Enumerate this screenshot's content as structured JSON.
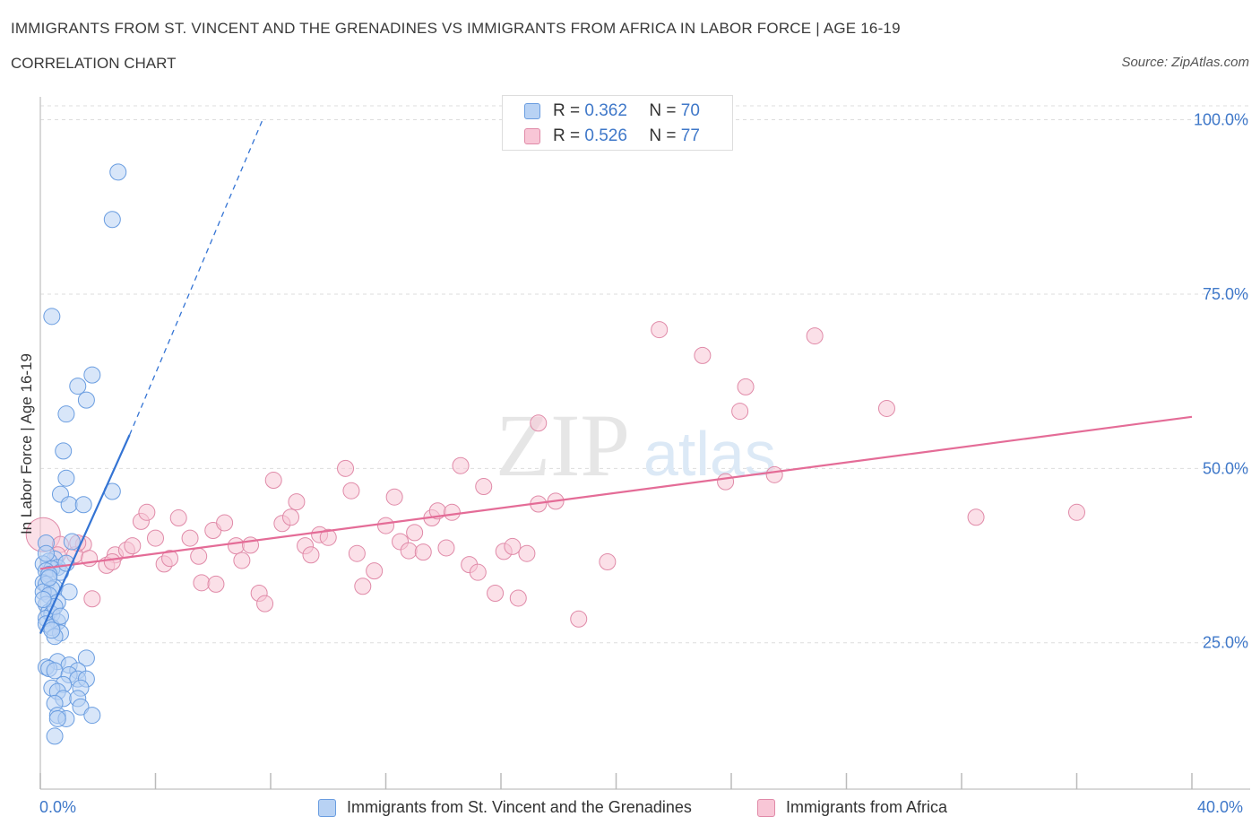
{
  "header": {
    "title": "IMMIGRANTS FROM ST. VINCENT AND THE GRENADINES VS IMMIGRANTS FROM AFRICA IN LABOR FORCE | AGE 16-19",
    "subtitle": "CORRELATION CHART",
    "source": "Source: ZipAtlas.com"
  },
  "legend": {
    "series1": {
      "r_label": "R = ",
      "r_value": "0.362",
      "n_label": "N = ",
      "n_value": "70"
    },
    "series2": {
      "r_label": "R = ",
      "r_value": "0.526",
      "n_label": "N = ",
      "n_value": "77"
    }
  },
  "colors": {
    "blue_fill": "#b8d2f4",
    "blue_stroke": "#6a9de0",
    "blue_line": "#3474d4",
    "pink_fill": "#f8c6d6",
    "pink_stroke": "#e08aa8",
    "pink_line": "#e46c97",
    "tick_text": "#3f78c9",
    "grid": "#dddddd"
  },
  "watermark": {
    "zip": "ZIP",
    "atlas": "atlas"
  },
  "chart_data": {
    "type": "scatter",
    "title": "IMMIGRANTS FROM ST. VINCENT AND THE GRENADINES VS IMMIGRANTS FROM AFRICA IN LABOR FORCE | AGE 16-19",
    "xlabel": "",
    "ylabel": "In Labor Force | Age 16-19",
    "xlim": [
      0,
      40
    ],
    "ylim": [
      4,
      102
    ],
    "x_tick_labels": {
      "min": "0.0%",
      "max": "40.0%"
    },
    "y_ticks": [
      {
        "value": 25,
        "label": "25.0%"
      },
      {
        "value": 50,
        "label": "50.0%"
      },
      {
        "value": 75,
        "label": "75.0%"
      },
      {
        "value": 100,
        "label": "100.0%"
      }
    ],
    "series": [
      {
        "name": "Immigrants from St. Vincent and the Grenadines",
        "color": "blue",
        "points": [
          [
            2.7,
            92.5
          ],
          [
            2.5,
            85.7
          ],
          [
            0.4,
            71.8
          ],
          [
            1.8,
            63.4
          ],
          [
            1.3,
            61.8
          ],
          [
            1.6,
            59.8
          ],
          [
            0.9,
            57.8
          ],
          [
            0.8,
            52.5
          ],
          [
            0.9,
            48.6
          ],
          [
            2.5,
            46.7
          ],
          [
            0.7,
            46.3
          ],
          [
            1.0,
            44.8
          ],
          [
            1.5,
            44.8
          ],
          [
            1.1,
            39.5
          ],
          [
            0.2,
            39.3
          ],
          [
            0.5,
            37.0
          ],
          [
            0.3,
            36.7
          ],
          [
            0.1,
            36.3
          ],
          [
            0.6,
            35.8
          ],
          [
            0.4,
            35.6
          ],
          [
            0.2,
            35.3
          ],
          [
            0.7,
            35.1
          ],
          [
            0.3,
            34.8
          ],
          [
            0.1,
            33.6
          ],
          [
            0.2,
            33.4
          ],
          [
            0.5,
            32.9
          ],
          [
            0.4,
            32.7
          ],
          [
            0.1,
            32.3
          ],
          [
            1.0,
            32.3
          ],
          [
            0.3,
            31.8
          ],
          [
            0.6,
            30.8
          ],
          [
            0.2,
            30.5
          ],
          [
            0.3,
            29.4
          ],
          [
            0.4,
            29.1
          ],
          [
            0.2,
            28.5
          ],
          [
            0.6,
            28.0
          ],
          [
            0.2,
            27.7
          ],
          [
            0.4,
            27.2
          ],
          [
            0.7,
            26.4
          ],
          [
            0.5,
            25.9
          ],
          [
            1.6,
            22.8
          ],
          [
            0.6,
            22.3
          ],
          [
            1.0,
            21.8
          ],
          [
            0.2,
            21.5
          ],
          [
            0.3,
            21.3
          ],
          [
            0.5,
            21.0
          ],
          [
            1.3,
            21.0
          ],
          [
            1.0,
            20.4
          ],
          [
            1.3,
            19.8
          ],
          [
            1.6,
            19.8
          ],
          [
            0.8,
            19.0
          ],
          [
            0.4,
            18.5
          ],
          [
            1.4,
            18.5
          ],
          [
            0.6,
            18.0
          ],
          [
            0.8,
            17.0
          ],
          [
            1.3,
            17.0
          ],
          [
            0.5,
            16.3
          ],
          [
            1.4,
            15.8
          ],
          [
            0.6,
            14.6
          ],
          [
            0.9,
            14.1
          ],
          [
            0.6,
            14.1
          ],
          [
            1.8,
            14.6
          ],
          [
            0.5,
            11.6
          ],
          [
            0.2,
            37.8
          ],
          [
            0.9,
            36.4
          ],
          [
            0.3,
            34.3
          ],
          [
            0.5,
            30.2
          ],
          [
            0.1,
            31.2
          ],
          [
            0.7,
            28.8
          ],
          [
            0.4,
            26.8
          ]
        ],
        "trend": {
          "x": [
            0.0,
            3.1
          ],
          "y": [
            26.3,
            54.8
          ]
        },
        "trend_dashed": {
          "x": [
            3.1,
            7.7
          ],
          "y": [
            54.8,
            99.8
          ]
        }
      },
      {
        "name": "Immigrants from Africa",
        "color": "pink",
        "points": [
          [
            0.1,
            40.5
          ],
          [
            0.7,
            39.1
          ],
          [
            0.6,
            37.6
          ],
          [
            1.5,
            39.1
          ],
          [
            1.2,
            37.6
          ],
          [
            1.7,
            37.1
          ],
          [
            2.6,
            37.6
          ],
          [
            2.3,
            36.1
          ],
          [
            1.8,
            31.3
          ],
          [
            2.5,
            36.6
          ],
          [
            3.0,
            38.3
          ],
          [
            3.2,
            38.9
          ],
          [
            3.5,
            42.4
          ],
          [
            3.7,
            43.7
          ],
          [
            4.0,
            40.0
          ],
          [
            4.3,
            36.3
          ],
          [
            4.5,
            37.1
          ],
          [
            4.8,
            42.9
          ],
          [
            5.2,
            40.0
          ],
          [
            5.5,
            37.4
          ],
          [
            5.6,
            33.6
          ],
          [
            6.0,
            41.1
          ],
          [
            6.1,
            33.4
          ],
          [
            6.4,
            42.2
          ],
          [
            6.8,
            38.9
          ],
          [
            7.0,
            36.8
          ],
          [
            7.3,
            39.0
          ],
          [
            7.6,
            32.1
          ],
          [
            7.8,
            30.6
          ],
          [
            8.1,
            48.3
          ],
          [
            8.4,
            42.1
          ],
          [
            8.7,
            43.0
          ],
          [
            8.9,
            45.2
          ],
          [
            9.2,
            38.9
          ],
          [
            9.4,
            37.6
          ],
          [
            9.7,
            40.5
          ],
          [
            10.0,
            40.1
          ],
          [
            10.6,
            50.0
          ],
          [
            10.8,
            46.8
          ],
          [
            11.0,
            37.8
          ],
          [
            11.2,
            33.1
          ],
          [
            11.6,
            35.3
          ],
          [
            12.0,
            41.8
          ],
          [
            12.3,
            45.9
          ],
          [
            12.5,
            39.5
          ],
          [
            12.8,
            38.2
          ],
          [
            13.0,
            40.8
          ],
          [
            13.3,
            38.0
          ],
          [
            13.6,
            42.9
          ],
          [
            13.8,
            43.9
          ],
          [
            14.1,
            38.6
          ],
          [
            14.3,
            43.7
          ],
          [
            14.6,
            50.4
          ],
          [
            14.9,
            36.2
          ],
          [
            15.2,
            35.1
          ],
          [
            15.4,
            47.4
          ],
          [
            15.8,
            32.1
          ],
          [
            16.1,
            38.1
          ],
          [
            16.4,
            38.8
          ],
          [
            16.6,
            31.4
          ],
          [
            16.9,
            37.8
          ],
          [
            17.3,
            56.5
          ],
          [
            17.3,
            44.9
          ],
          [
            17.9,
            45.3
          ],
          [
            18.7,
            28.4
          ],
          [
            19.7,
            36.6
          ],
          [
            21.5,
            69.9
          ],
          [
            23.0,
            66.2
          ],
          [
            23.8,
            48.1
          ],
          [
            24.3,
            58.2
          ],
          [
            24.5,
            61.7
          ],
          [
            25.5,
            49.1
          ],
          [
            26.9,
            69.0
          ],
          [
            29.4,
            58.6
          ],
          [
            32.5,
            43.0
          ],
          [
            36.0,
            43.7
          ],
          [
            1.3,
            39.3
          ]
        ],
        "trend": {
          "x": [
            0.0,
            40.0
          ],
          "y": [
            35.6,
            57.4
          ]
        }
      }
    ]
  },
  "bottom_legend": {
    "series1_label": "Immigrants from St. Vincent and the Grenadines",
    "series2_label": "Immigrants from Africa"
  }
}
